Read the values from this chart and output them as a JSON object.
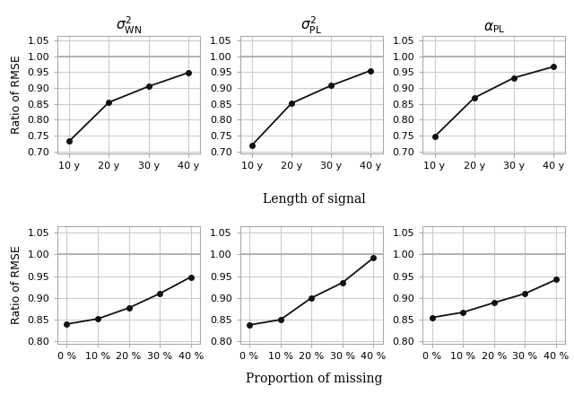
{
  "top_row": {
    "x_values": [
      10,
      20,
      30,
      40
    ],
    "x_labels": [
      "10 y",
      "20 y",
      "30 y",
      "40 y"
    ],
    "xlabel": "Length of signal",
    "ylabel": "Ratio of RMSE",
    "ylim": [
      0.695,
      1.065
    ],
    "yticks": [
      0.7,
      0.75,
      0.8,
      0.85,
      0.9,
      0.95,
      1.0,
      1.05
    ],
    "ytick_labels": [
      "0.70",
      "0.75",
      "0.80",
      "0.85",
      "0.90",
      "0.95",
      "1.00",
      "1.05"
    ],
    "series": [
      [
        0.733,
        0.855,
        0.905,
        0.948
      ],
      [
        0.72,
        0.852,
        0.908,
        0.955
      ],
      [
        0.747,
        0.869,
        0.932,
        0.967
      ]
    ]
  },
  "bottom_row": {
    "x_values": [
      0,
      10,
      20,
      30,
      40
    ],
    "x_labels": [
      "0 %",
      "10 %",
      "20 %",
      "30 %",
      "40 %"
    ],
    "xlabel": "Proportion of missing",
    "ylabel": "Ratio of RMSE",
    "ylim": [
      0.795,
      1.065
    ],
    "yticks": [
      0.8,
      0.85,
      0.9,
      0.95,
      1.0,
      1.05
    ],
    "ytick_labels": [
      "0.80",
      "0.85",
      "0.90",
      "0.95",
      "1.00",
      "1.05"
    ],
    "series": [
      [
        0.84,
        0.852,
        0.877,
        0.91,
        0.948
      ],
      [
        0.838,
        0.85,
        0.9,
        0.935,
        0.992
      ],
      [
        0.855,
        0.867,
        0.889,
        0.91,
        0.942
      ]
    ]
  },
  "col_titles_latex": [
    "$\\sigma^2_{\\mathrm{WN}}$",
    "$\\sigma^2_{\\mathrm{PL}}$",
    "$\\alpha_{\\mathrm{PL}}$"
  ],
  "hline_y": 1.0,
  "hline_color": "#aaaaaa",
  "line_color": "#111111",
  "marker": "o",
  "marker_size": 4,
  "bg_color": "#ffffff",
  "grid_color": "#cccccc",
  "grid_linewidth": 0.8,
  "spine_color": "#aaaaaa",
  "tick_fontsize": 8,
  "label_fontsize": 10,
  "title_fontsize": 11,
  "ylabel_fontsize": 9
}
